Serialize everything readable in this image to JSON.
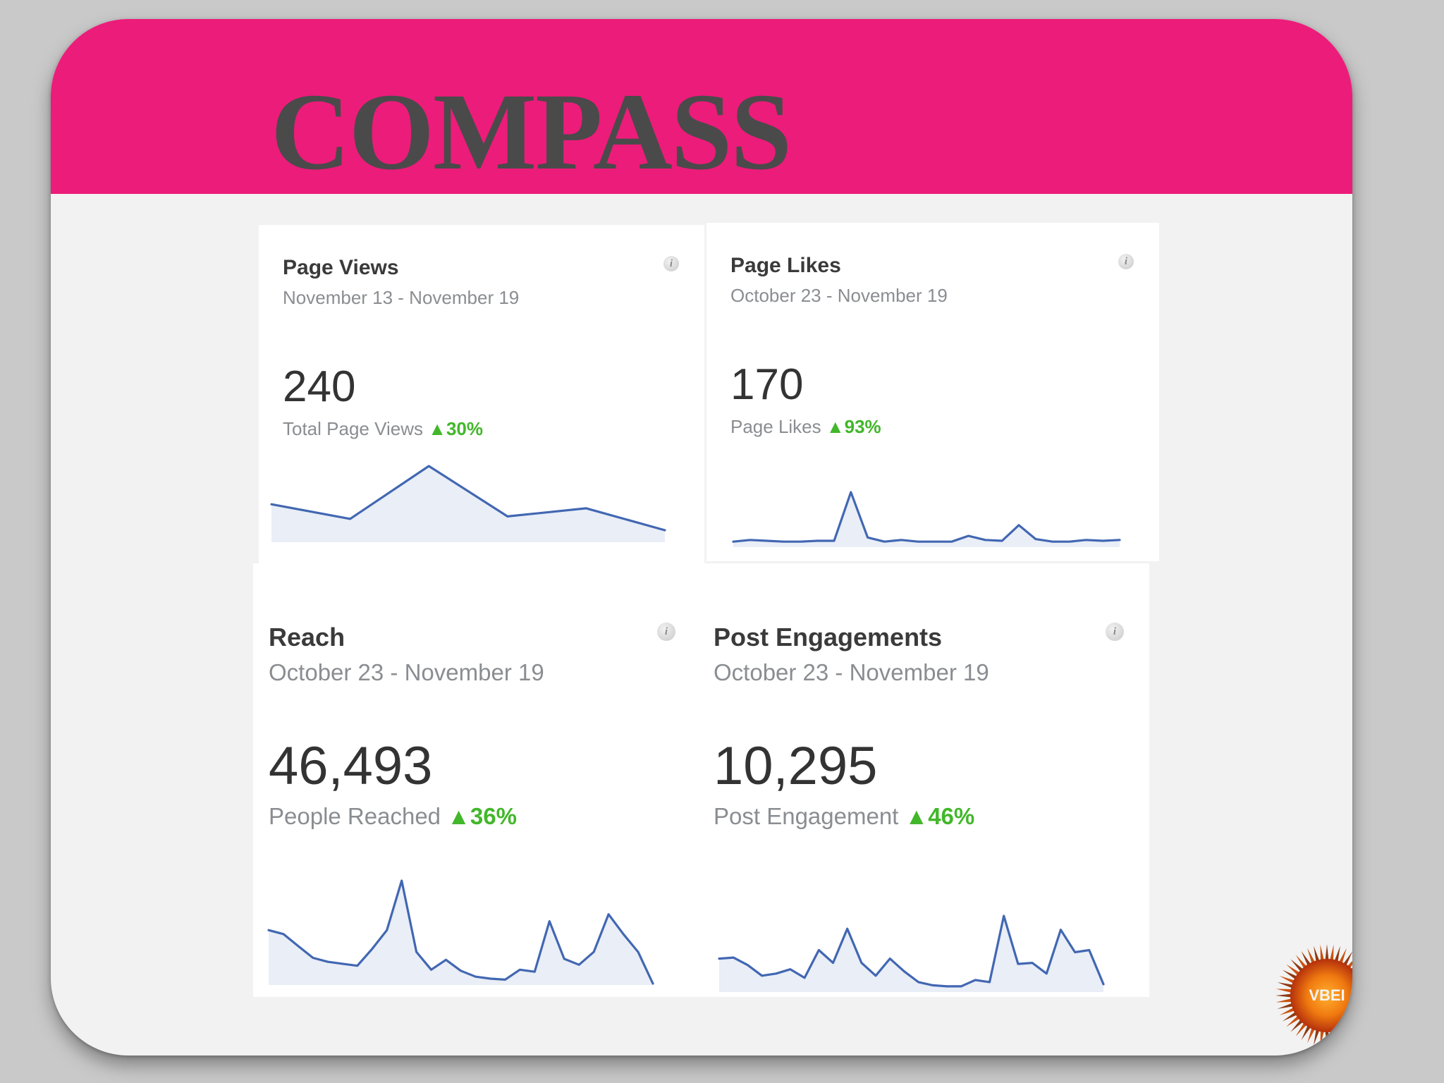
{
  "slide": {
    "title": "COMPASS",
    "header_color": "#ec1c7a",
    "logo_text": "VBEI"
  },
  "cards": [
    {
      "title": "Page Views",
      "date_range": "November 13 - November 19",
      "value": "240",
      "metric_label": "Total Page Views",
      "change": "30%",
      "sparkline": [
        45,
        27,
        92,
        30,
        40,
        13
      ]
    },
    {
      "title": "Page Likes",
      "date_range": "October 23 - November 19",
      "value": "170",
      "metric_label": "Page Likes",
      "change": "93%",
      "sparkline": [
        5,
        7,
        6,
        5,
        5,
        6,
        6,
        65,
        10,
        5,
        7,
        5,
        5,
        5,
        12,
        7,
        6,
        25,
        8,
        5,
        5,
        7,
        6,
        7
      ]
    },
    {
      "title": "Reach",
      "date_range": "October 23 - November 19",
      "value": "46,493",
      "metric_label": "People Reached",
      "change": "36%",
      "sparkline": [
        54,
        50,
        38,
        26,
        22,
        20,
        18,
        35,
        54,
        104,
        32,
        14,
        24,
        13,
        7,
        5,
        4,
        14,
        12,
        63,
        25,
        19,
        32,
        70,
        50,
        32,
        0
      ]
    },
    {
      "title": "Post Engagements",
      "date_range": "October 23 - November 19",
      "value": "10,295",
      "metric_label": "Post Engagement",
      "change": "46%",
      "sparkline": [
        30,
        31,
        24,
        14,
        16,
        20,
        12,
        38,
        26,
        58,
        26,
        14,
        30,
        18,
        8,
        5,
        4,
        4,
        10,
        8,
        70,
        25,
        26,
        16,
        57,
        36,
        38,
        6
      ]
    }
  ],
  "colors": {
    "line": "#4267b2",
    "area": "#e9eef7",
    "positive_change": "#42b72a",
    "muted_text": "#8a8d91"
  },
  "icons": {
    "info": "info-icon",
    "up_arrow": "triangle-up-icon"
  }
}
